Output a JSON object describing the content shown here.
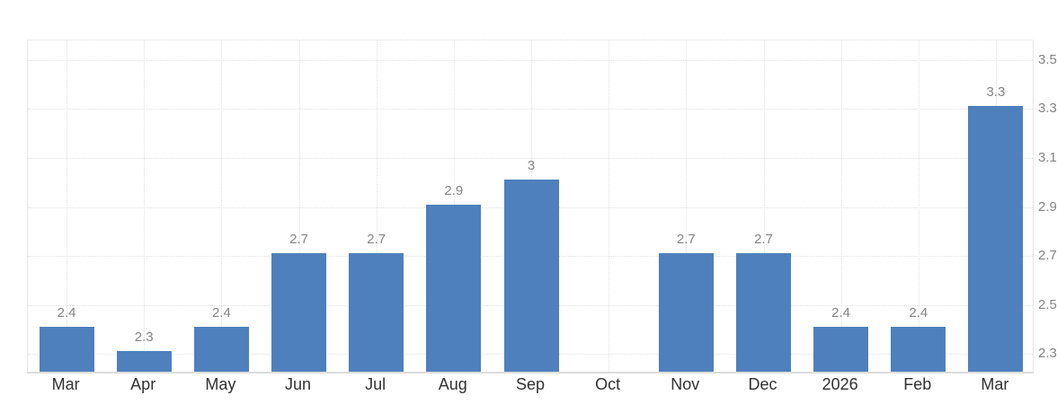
{
  "chart_data": {
    "type": "bar",
    "categories": [
      "Mar",
      "Apr",
      "May",
      "Jun",
      "Jul",
      "Aug",
      "Sep",
      "Oct",
      "Nov",
      "Dec",
      "2026",
      "Feb",
      "Mar"
    ],
    "values": [
      2.4,
      2.3,
      2.4,
      2.7,
      2.7,
      2.9,
      3,
      null,
      2.7,
      2.7,
      2.4,
      2.4,
      3.3
    ],
    "bar_labels": [
      "2.4",
      "2.3",
      "2.4",
      "2.7",
      "2.7",
      "2.9",
      "3",
      "",
      "2.7",
      "2.7",
      "2.4",
      "2.4",
      "3.3"
    ],
    "yticks": [
      2.3,
      2.5,
      2.7,
      2.9,
      3.1,
      3.3,
      3.5
    ],
    "ytick_labels": [
      "2.3",
      "2.5",
      "2.7",
      "2.9",
      "3.1",
      "3.3",
      "3.5"
    ],
    "ylim": [
      2.2156,
      3.5805
    ],
    "title": "",
    "xlabel": "",
    "ylabel": "",
    "legend": "none",
    "grid": "dotted horizontal lines at yticks, dotted vertical lines at category centers",
    "ytick_side": "right-clipped",
    "bar_color": "#4e80bd",
    "value_label_color": "#848484",
    "axis_label_color": "#313131",
    "gridline_color": "#e1e1e1"
  }
}
